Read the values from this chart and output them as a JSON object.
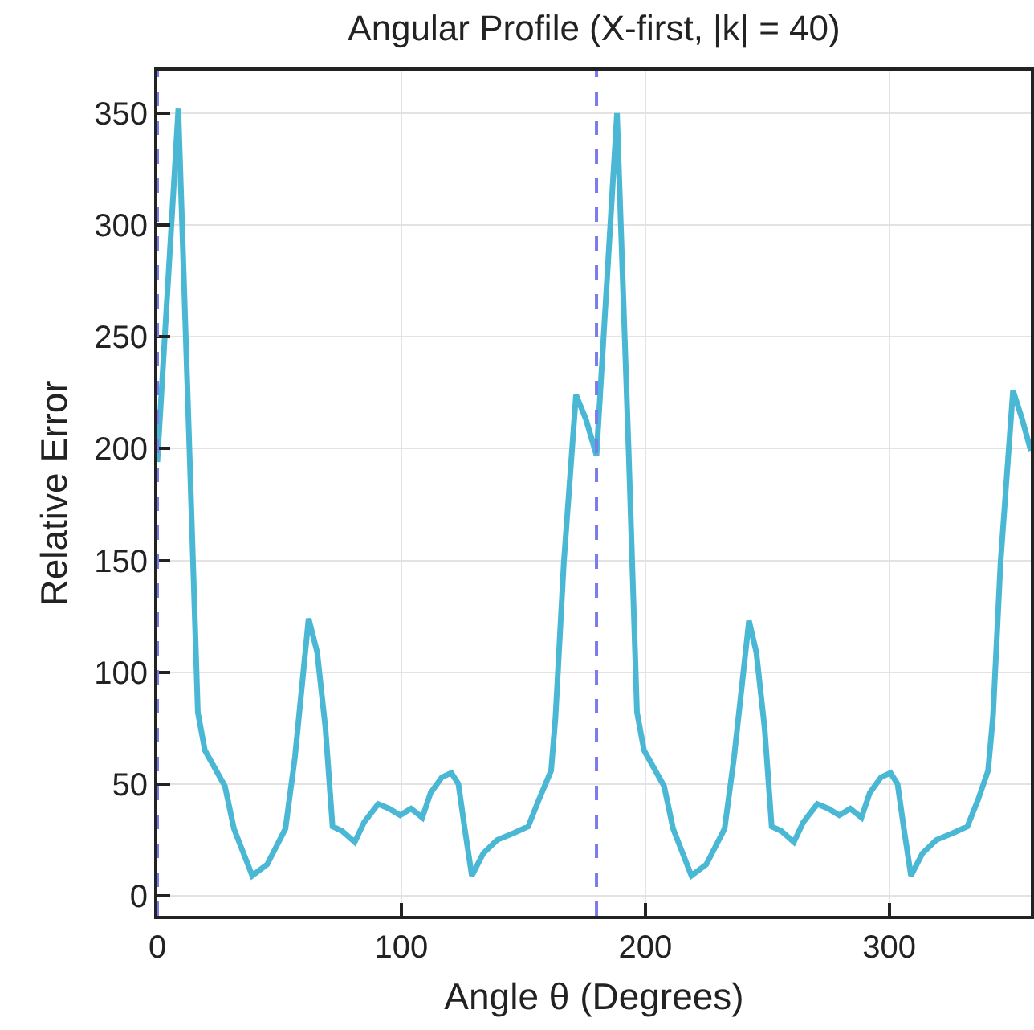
{
  "chart_data": {
    "type": "line",
    "title": "Angular Profile (X-first, |k| = 40)",
    "xlabel": "Angle θ (Degrees)",
    "ylabel": "Relative Error",
    "xlim": [
      0,
      358
    ],
    "xticks": [
      0,
      100,
      200,
      300
    ],
    "ylim": [
      -9,
      369
    ],
    "yticks": [
      0,
      50,
      100,
      150,
      200,
      250,
      300,
      350
    ],
    "grid": true,
    "marker": "none",
    "line_style": "solid",
    "ref_lines": [
      {
        "axis": "x",
        "value": 0,
        "label": null,
        "color": "#7b7bf0",
        "line_style": "dashed"
      },
      {
        "axis": "x",
        "value": 180,
        "label": null,
        "color": "#7b7bf0",
        "line_style": "dashed"
      }
    ],
    "series": [
      {
        "color": "#4ab8d4",
        "x": [
          0,
          8.6,
          13.2,
          16.6,
          19.5,
          27.7,
          31.4,
          38.9,
          45,
          52.5,
          56.4,
          62,
          65.5,
          68.9,
          71.8,
          75.7,
          80.9,
          84.8,
          90.5,
          95,
          99.5,
          104,
          108.6,
          112,
          116.6,
          120.5,
          123.4,
          126,
          128.9,
          133.6,
          139.3,
          146,
          152,
          156.4,
          161.4,
          163.2,
          166.6,
          171.6,
          175.7,
          180,
          188.4,
          193.2,
          196.6,
          199.5,
          207.7,
          211.4,
          218.9,
          225,
          232.5,
          236.4,
          242.5,
          245.5,
          248.9,
          251.8,
          255.7,
          260.9,
          264.8,
          270.5,
          275,
          279.5,
          284,
          288.6,
          292,
          296.6,
          300.5,
          303.4,
          306,
          308.9,
          313.6,
          319.3,
          326,
          332,
          336.4,
          340.5,
          342.5,
          345.6,
          350.7,
          354.5,
          358
        ],
        "values": [
          194,
          352,
          198,
          82,
          65,
          49,
          30,
          9,
          14,
          30,
          62,
          124,
          109,
          75,
          31,
          29,
          24,
          33,
          41,
          39,
          36,
          39,
          35,
          46,
          53,
          55,
          50,
          30,
          9,
          19,
          25,
          28,
          31,
          43,
          56,
          80,
          149,
          224,
          213,
          197,
          350,
          198,
          82,
          65,
          49,
          30,
          9,
          14,
          30,
          62,
          123,
          109,
          75,
          31,
          29,
          24,
          33,
          41,
          39,
          36,
          39,
          35,
          46,
          53,
          55,
          50,
          30,
          9,
          19,
          25,
          28,
          31,
          43,
          56,
          80,
          149,
          226,
          213,
          199
        ]
      }
    ]
  }
}
